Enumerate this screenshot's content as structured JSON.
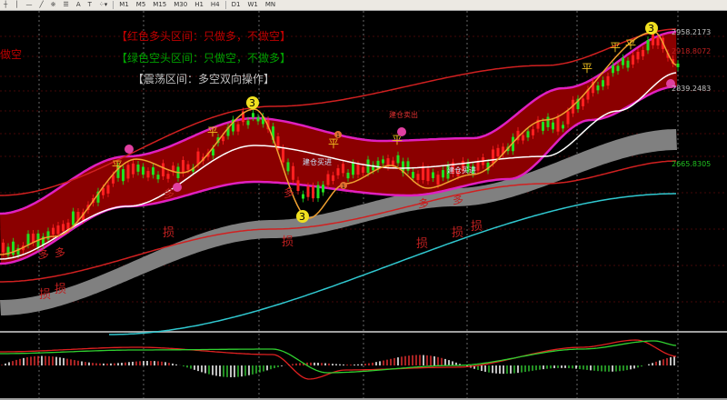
{
  "toolbar": {
    "tools": [
      {
        "icon": "crosshair-icon",
        "glyph": "┼"
      },
      {
        "icon": "vertical-line-icon",
        "glyph": "│"
      },
      {
        "icon": "horizontal-line-icon",
        "glyph": "—"
      },
      {
        "icon": "trendline-icon",
        "glyph": "╱"
      },
      {
        "icon": "fibonacci-icon",
        "glyph": "※"
      },
      {
        "icon": "channel-icon",
        "glyph": "☰"
      },
      {
        "icon": "text-icon",
        "glyph": "A"
      },
      {
        "icon": "text-label-icon",
        "glyph": "T"
      },
      {
        "icon": "shapes-dropdown-icon",
        "glyph": "⁘▾"
      }
    ],
    "timeframes": [
      "M1",
      "M5",
      "M15",
      "M30",
      "H1",
      "H4",
      "D1",
      "W1",
      "MN"
    ]
  },
  "chart": {
    "legend": {
      "red_zone": "【红色多头区间：只做多，不做空】",
      "green_zone": "【绿色空头区间：只做空，不做多】",
      "range_zone": "【震荡区间：多空双向操作】"
    },
    "side_label": "做空",
    "price_labels": {
      "upper": "2958.2173",
      "middle": "2918.8072",
      "lower": "2839.2483",
      "bottom": "2665.8305"
    },
    "signals": {
      "buy_open": "建仓买进",
      "sell_open": "建仓卖出",
      "buy_open_2": "建仓买进",
      "flat": "平",
      "stop": "损",
      "long": "多",
      "three": "3",
      "one": "1"
    },
    "colors": {
      "background": "#000000",
      "channel_fill": "#8b0000",
      "channel_edge": "#e020c0",
      "bull_candle": "#ff2020",
      "bear_candle": "#20e020",
      "support_band": "#808080",
      "fast_line": "#f0a030",
      "slow_line": "#ffffff",
      "cyan_line": "#30c8d0",
      "legend_red": "#c00000",
      "legend_green": "#00a000",
      "legend_gray": "#c0c0c0"
    }
  }
}
